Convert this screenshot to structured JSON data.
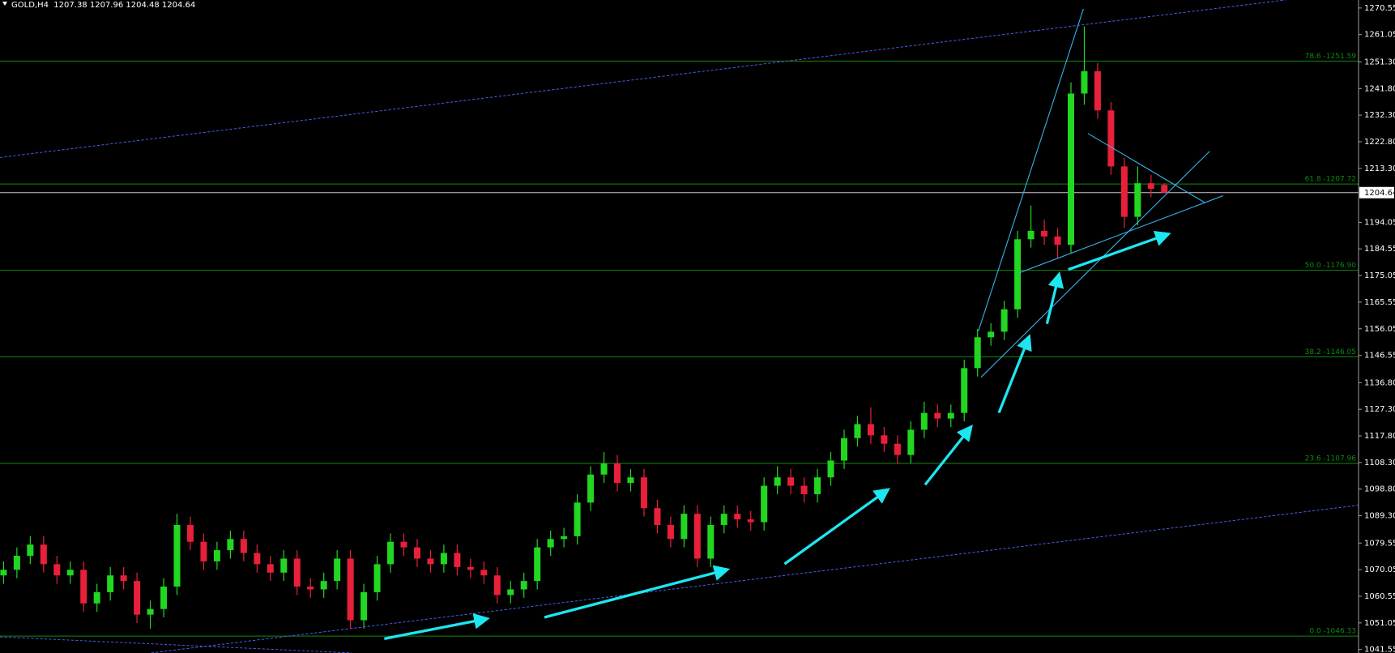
{
  "chart_data": {
    "type": "candlestick",
    "title": "GOLD,H4  1207.38 1207.96 1204.48 1204.64",
    "up_color": "#22d622",
    "down_color": "#e8203a",
    "open": [
      1068,
      1070,
      1075,
      1079,
      1072,
      1068,
      1070,
      1058,
      1062,
      1068,
      1066,
      1054,
      1056,
      1064,
      1086,
      1080,
      1073,
      1077,
      1081,
      1076,
      1072,
      1069,
      1074,
      1064,
      1063,
      1066,
      1074,
      1052,
      1062,
      1072,
      1080,
      1078,
      1074,
      1072,
      1076,
      1071,
      1070,
      1068,
      1061,
      1063,
      1066,
      1078,
      1081,
      1082,
      1094,
      1104,
      1108,
      1101,
      1103,
      1092,
      1086,
      1081,
      1090,
      1074,
      1086,
      1090,
      1088,
      1087,
      1100,
      1103,
      1100,
      1097,
      1103,
      1109,
      1117,
      1122,
      1118,
      1115,
      1111,
      1120,
      1126,
      1124,
      1126,
      1142,
      1153,
      1155,
      1163,
      1188,
      1191,
      1189,
      1186,
      1240,
      1248,
      1234,
      1214,
      1196,
      1208,
      1207.38
    ],
    "high": [
      1073,
      1078,
      1082,
      1082,
      1075,
      1073,
      1073,
      1065,
      1071,
      1071,
      1069,
      1059,
      1067,
      1090,
      1089,
      1083,
      1080,
      1084,
      1084,
      1079,
      1075,
      1077,
      1077,
      1067,
      1069,
      1077,
      1077,
      1065,
      1075,
      1083,
      1083,
      1081,
      1077,
      1079,
      1079,
      1074,
      1073,
      1071,
      1066,
      1069,
      1081,
      1084,
      1085,
      1097,
      1107,
      1112,
      1111,
      1106,
      1106,
      1095,
      1089,
      1093,
      1093,
      1089,
      1093,
      1093,
      1091,
      1103,
      1107,
      1106,
      1103,
      1106,
      1112,
      1120,
      1125,
      1128,
      1121,
      1118,
      1123,
      1130,
      1129,
      1129,
      1145,
      1156,
      1158,
      1166,
      1191,
      1200,
      1195,
      1192,
      1244,
      1264,
      1251,
      1237,
      1217,
      1214,
      1211,
      1207.96
    ],
    "low": [
      1065,
      1067,
      1072,
      1069,
      1065,
      1065,
      1055,
      1055,
      1059,
      1063,
      1051,
      1049,
      1053,
      1061,
      1077,
      1070,
      1070,
      1074,
      1073,
      1069,
      1066,
      1066,
      1061,
      1060,
      1060,
      1063,
      1049,
      1049,
      1059,
      1069,
      1075,
      1071,
      1069,
      1069,
      1068,
      1067,
      1065,
      1058,
      1058,
      1060,
      1063,
      1075,
      1078,
      1079,
      1091,
      1101,
      1098,
      1098,
      1089,
      1083,
      1078,
      1078,
      1071,
      1071,
      1083,
      1085,
      1084,
      1084,
      1097,
      1097,
      1094,
      1094,
      1100,
      1106,
      1114,
      1115,
      1112,
      1108,
      1108,
      1117,
      1121,
      1121,
      1123,
      1139,
      1150,
      1152,
      1160,
      1185,
      1186,
      1181,
      1183,
      1236,
      1231,
      1211,
      1192,
      1193,
      1203,
      1204.48
    ],
    "close": [
      1070,
      1075,
      1079,
      1072,
      1068,
      1070,
      1058,
      1062,
      1068,
      1066,
      1054,
      1056,
      1064,
      1086,
      1080,
      1073,
      1077,
      1081,
      1076,
      1072,
      1069,
      1074,
      1064,
      1063,
      1066,
      1074,
      1052,
      1062,
      1072,
      1080,
      1078,
      1074,
      1072,
      1076,
      1071,
      1070,
      1068,
      1061,
      1063,
      1066,
      1078,
      1081,
      1082,
      1094,
      1104,
      1108,
      1101,
      1103,
      1092,
      1086,
      1081,
      1090,
      1074,
      1086,
      1090,
      1088,
      1087,
      1100,
      1103,
      1100,
      1097,
      1103,
      1109,
      1117,
      1122,
      1118,
      1115,
      1111,
      1120,
      1126,
      1124,
      1126,
      1142,
      1153,
      1155,
      1163,
      1188,
      1191,
      1189,
      1186,
      1240,
      1248,
      1234,
      1214,
      1196,
      1208,
      1206,
      1204.64
    ],
    "current_price": 1204.64,
    "levels": [
      {
        "value": 1251.59,
        "label": "78.6 -1251.59"
      },
      {
        "value": 1207.72,
        "label": "61.8 -1207.72"
      },
      {
        "value": 1176.9,
        "label": "50.0 -1176.90"
      },
      {
        "value": 1146.05,
        "label": "38.2 -1146.05"
      },
      {
        "value": 1107.96,
        "label": "23.6 -1107.96"
      },
      {
        "value": 1046.33,
        "label": "0.0 -1046.33"
      }
    ],
    "level_color": "#0f8a0f",
    "ylim": [
      1040.3,
      1273.4
    ],
    "yticks": [
      1270.55,
      1261.05,
      {
        "value": 1251.3,
        "label": "1251.30"
      },
      {
        "value": 1241.8,
        "label": "1241.80"
      },
      {
        "value": 1232.3,
        "label": "1232.30"
      },
      {
        "value": 1222.8,
        "label": "1222.80"
      },
      {
        "value": 1213.3,
        "label": "1213.30"
      },
      1194.05,
      1184.55,
      1175.05,
      1165.55,
      1156.05,
      1146.55,
      {
        "value": 1136.8,
        "label": "1136.80"
      },
      {
        "value": 1127.3,
        "label": "1127.30"
      },
      {
        "value": 1117.8,
        "label": "1117.80"
      },
      {
        "value": 1108.3,
        "label": "1108.30"
      },
      {
        "value": 1098.8,
        "label": "1098.80"
      },
      {
        "value": 1089.3,
        "label": "1089.30"
      },
      1079.55,
      1070.05,
      1060.55,
      1051.05,
      1041.55
    ]
  }
}
